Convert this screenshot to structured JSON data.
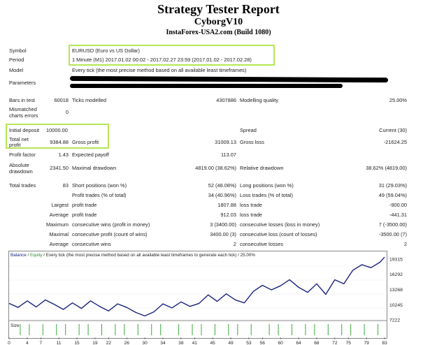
{
  "header": {
    "title": "Strategy Tester Report",
    "ea_name": "CyborgV10",
    "server": "InstaForex-USA2.com (Build 1080)"
  },
  "info": {
    "symbol_label": "Symbol",
    "symbol_value": "EURUSD (Euro vs US Dollar)",
    "period_label": "Period",
    "period_value": "1 Minute (M1) 2017.01.02 00:02 - 2017.02.27 23:59 (2017.01.02 - 2017.02.28)",
    "model_label": "Model",
    "model_value": "Every tick (the most precise method based on all available least timeframes)",
    "parameters_label": "Parameters"
  },
  "stats": {
    "bars_label": "Bars in test",
    "bars_value": "60018",
    "ticks_label": "Ticks modelled",
    "ticks_value": "4307886",
    "quality_label": "Modelling quality",
    "quality_value": "25.00%",
    "mismatch_label1": "Mismatched",
    "mismatch_label2": "charts errors",
    "mismatch_value": "0",
    "deposit_label": "Initial deposit",
    "deposit_value": "10000.00",
    "spread_label": "Spread",
    "spread_value": "Current (30)",
    "netprofit_label1": "Total net",
    "netprofit_label2": "profit",
    "netprofit_value": "9384.88",
    "grossprofit_label": "Gross profit",
    "grossprofit_value": "31009.13",
    "grossloss_label": "Gross loss",
    "grossloss_value": "-21624.25",
    "pf_label": "Profit factor",
    "pf_value": "1.43",
    "ep_label": "Expected payoff",
    "ep_value": "113.07",
    "absdd_label1": "Absolute",
    "absdd_label2": "drawdown",
    "absdd_value": "2341.50",
    "maxdd_label": "Maximal drawdown",
    "maxdd_value": "4819.00 (38.62%)",
    "reldd_label": "Relative drawdown",
    "reldd_value": "38.62% (4819.00)",
    "trades_label": "Total trades",
    "trades_value": "83",
    "short_label": "Short positions (won %)",
    "short_value": "52 (48.08%)",
    "long_label": "Long positions (won %)",
    "long_value": "31 (29.03%)",
    "pt_label": "Profit trades (% of total)",
    "pt_value": "34 (40.96%)",
    "lt_label": "Loss trades (% of total)",
    "lt_value": "49 (59.04%)",
    "largest_label": "Largest",
    "largest_pt_label": "profit trade",
    "largest_pt_value": "1807.88",
    "largest_lt_label": "loss trade",
    "largest_lt_value": "-900.00",
    "average_label": "Average",
    "avg_pt_label": "profit trade",
    "avg_pt_value": "912.03",
    "avg_lt_label": "loss trade",
    "avg_lt_value": "-441.31",
    "maximum_label": "Maximum",
    "max_cw_label": "consecutive wins (profit in money)",
    "max_cw_value": "3 (3400.00)",
    "max_cl_label": "consecutive losses (loss in money)",
    "max_cl_value": "7 (-3500.00)",
    "maximal_label": "Maximal",
    "mx_cp_label": "consecutive profit (count of wins)",
    "mx_cp_value": "3400.00 (3)",
    "mx_cl_label": "consecutive loss (count of losses)",
    "mx_cl_value": "-3500.00 (7)",
    "average2_label": "Average",
    "avg_cw_label": "consecutive wins",
    "avg_cw_value": "2",
    "avg_cl_label": "consecutive losses",
    "avg_cl_value": "2"
  },
  "chart": {
    "legend_balance": "Balance",
    "legend_equity": "Equity",
    "legend_rest": "/ Every tick (the most precise method based on all available least timeframes to generate each tick) / 25.00%",
    "size_label": "Size"
  },
  "chart_data": {
    "type": "line",
    "series": [
      {
        "name": "Balance",
        "x": [
          0,
          2,
          4,
          6,
          8,
          10,
          12,
          14,
          16,
          18,
          20,
          22,
          24,
          26,
          28,
          30,
          32,
          34,
          36,
          38,
          40,
          42,
          44,
          46,
          48,
          50,
          52,
          54,
          56,
          58,
          60,
          62,
          64,
          66,
          68,
          70,
          72,
          74,
          76,
          78,
          80,
          82,
          83
        ],
        "values": [
          10500,
          9700,
          11000,
          9800,
          11200,
          10300,
          9300,
          10600,
          9500,
          11000,
          9900,
          9000,
          10400,
          9700,
          8700,
          8000,
          8800,
          10400,
          9600,
          10800,
          9900,
          10500,
          12200,
          10900,
          12400,
          11200,
          10600,
          12900,
          14100,
          13200,
          14000,
          15200,
          13700,
          12700,
          14400,
          12300,
          15200,
          14400,
          17100,
          18200,
          17600,
          18700,
          19700
        ]
      }
    ],
    "y_ticks": [
      "19315",
      "16292",
      "13268",
      "10245",
      "7222"
    ],
    "x_ticks": [
      "0",
      "4",
      "7",
      "11",
      "15",
      "19",
      "22",
      "26",
      "30",
      "34",
      "38",
      "41",
      "45",
      "49",
      "53",
      "56",
      "60",
      "64",
      "68",
      "72",
      "75",
      "79",
      "83"
    ],
    "trade_sizes": [
      0,
      0,
      1,
      0,
      1,
      0,
      0,
      1,
      0,
      0,
      1,
      0,
      1,
      0,
      0,
      1,
      0,
      1,
      0,
      0,
      1,
      0,
      0,
      1,
      0,
      1,
      0,
      0,
      1,
      0,
      0,
      1,
      0,
      1,
      0,
      0,
      0,
      1,
      0,
      0,
      1,
      0,
      1,
      0,
      0,
      1,
      0,
      0,
      1,
      0,
      1,
      0,
      0,
      1,
      0,
      0,
      0,
      1,
      0,
      1,
      0,
      0,
      1,
      0,
      0,
      1,
      0,
      1,
      0,
      0,
      1,
      0,
      0,
      1,
      0,
      1,
      0,
      0,
      1,
      0,
      0,
      1,
      0
    ],
    "ylim": [
      7222,
      19315
    ],
    "xlim": [
      0,
      83
    ]
  },
  "colors": {
    "highlight": "#b5e655",
    "balance_line": "#1a237e",
    "equity_legend": "#2e8b2e",
    "size_bars": "#3aa83a"
  }
}
